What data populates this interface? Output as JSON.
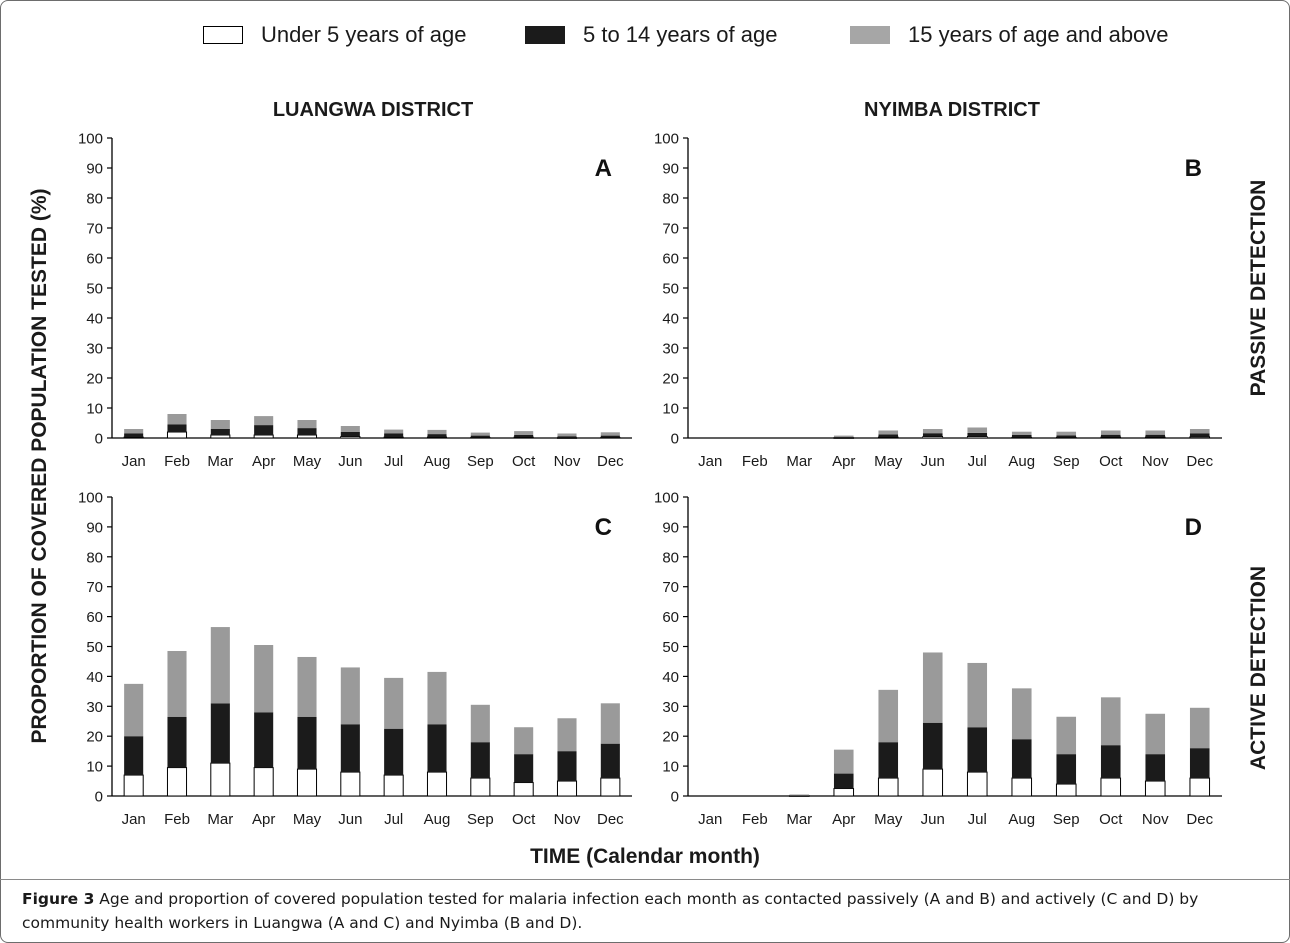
{
  "legend": [
    {
      "label": "Under 5 years of age",
      "color": "#ffffff"
    },
    {
      "label": "5 to 14 years of age",
      "color": "#1b1b1b"
    },
    {
      "label": "15 years of age and above",
      "color": "#9a9a9a"
    }
  ],
  "district_titles": [
    "LUANGWA  DISTRICT",
    "NYIMBA DISTRICT"
  ],
  "row_labels": [
    "PASSIVE DETECTION",
    "ACTIVE  DETECTION"
  ],
  "ylabel": "PROPORTION OF COVERED POPULATION  TESTED (%)",
  "xlabel": "TIME (Calendar month)",
  "caption": {
    "figure_label": "Figure 3",
    "text": " Age and proportion of covered population tested for malaria infection each month as contacted passively (A and B) and actively (C and D) by community health workers in Luangwa (A and C) and Nyimba (B and D)."
  },
  "chart_data": [
    {
      "type": "bar",
      "stacked": true,
      "panel_label": "A",
      "district": "LUANGWA  DISTRICT",
      "detection": "PASSIVE DETECTION",
      "categories": [
        "Jan",
        "Feb",
        "Mar",
        "Apr",
        "May",
        "Jun",
        "Jul",
        "Aug",
        "Sep",
        "Oct",
        "Nov",
        "Dec"
      ],
      "ylim": [
        0,
        100
      ],
      "yticks": [
        0,
        10,
        20,
        30,
        40,
        50,
        60,
        70,
        80,
        90,
        100
      ],
      "series": [
        {
          "name": "Under 5 years of age",
          "values": [
            0.3,
            2,
            1,
            1,
            1,
            0.5,
            0.3,
            0.3,
            0.2,
            0.3,
            0.1,
            0.2
          ]
        },
        {
          "name": "5 to 14 years of age",
          "values": [
            1.2,
            2.5,
            2,
            3.3,
            2.3,
            1.5,
            1.2,
            1,
            0.6,
            0.7,
            0.5,
            0.6
          ]
        },
        {
          "name": "15 years of age and above",
          "values": [
            1.5,
            3.5,
            3,
            3,
            2.7,
            2,
            1.3,
            1.4,
            1,
            1.3,
            0.9,
            1.1
          ]
        }
      ]
    },
    {
      "type": "bar",
      "stacked": true,
      "panel_label": "B",
      "district": "NYIMBA DISTRICT",
      "detection": "PASSIVE DETECTION",
      "categories": [
        "Jan",
        "Feb",
        "Mar",
        "Apr",
        "May",
        "Jun",
        "Jul",
        "Aug",
        "Sep",
        "Oct",
        "Nov",
        "Dec"
      ],
      "ylim": [
        0,
        100
      ],
      "yticks": [
        0,
        10,
        20,
        30,
        40,
        50,
        60,
        70,
        80,
        90,
        100
      ],
      "series": [
        {
          "name": "Under 5 years of age",
          "values": [
            0,
            0,
            0,
            0.1,
            0.3,
            0.5,
            0.5,
            0.2,
            0.2,
            0.3,
            0.3,
            0.4
          ]
        },
        {
          "name": "5 to 14 years of age",
          "values": [
            0,
            0,
            0,
            0.2,
            0.9,
            1.1,
            1.2,
            0.8,
            0.7,
            0.8,
            0.8,
            1.1
          ]
        },
        {
          "name": "15 years of age and above",
          "values": [
            0,
            0,
            0,
            0.5,
            1.3,
            1.4,
            1.8,
            1.1,
            1.2,
            1.4,
            1.4,
            1.5
          ]
        }
      ]
    },
    {
      "type": "bar",
      "stacked": true,
      "panel_label": "C",
      "district": "LUANGWA  DISTRICT",
      "detection": "ACTIVE  DETECTION",
      "categories": [
        "Jan",
        "Feb",
        "Mar",
        "Apr",
        "May",
        "Jun",
        "Jul",
        "Aug",
        "Sep",
        "Oct",
        "Nov",
        "Dec"
      ],
      "ylim": [
        0,
        100
      ],
      "yticks": [
        0,
        10,
        20,
        30,
        40,
        50,
        60,
        70,
        80,
        90,
        100
      ],
      "series": [
        {
          "name": "Under 5 years of age",
          "values": [
            7,
            9.5,
            11,
            9.5,
            9,
            8,
            7,
            8,
            6,
            4.5,
            5,
            6
          ]
        },
        {
          "name": "5 to 14 years of age",
          "values": [
            13,
            17,
            20,
            18.5,
            17.5,
            16,
            15.5,
            16,
            12,
            9.5,
            10,
            11.5
          ]
        },
        {
          "name": "15 years of age and above",
          "values": [
            17.5,
            22,
            25.5,
            22.5,
            20,
            19,
            17,
            17.5,
            12.5,
            9,
            11,
            13.5
          ]
        }
      ]
    },
    {
      "type": "bar",
      "stacked": true,
      "panel_label": "D",
      "district": "NYIMBA DISTRICT",
      "detection": "ACTIVE  DETECTION",
      "categories": [
        "Jan",
        "Feb",
        "Mar",
        "Apr",
        "May",
        "Jun",
        "Jul",
        "Aug",
        "Sep",
        "Oct",
        "Nov",
        "Dec"
      ],
      "ylim": [
        0,
        100
      ],
      "yticks": [
        0,
        10,
        20,
        30,
        40,
        50,
        60,
        70,
        80,
        90,
        100
      ],
      "series": [
        {
          "name": "Under 5 years of age",
          "values": [
            0,
            0,
            0.1,
            2.5,
            6,
            9,
            8,
            6,
            4,
            6,
            5,
            6
          ]
        },
        {
          "name": "5 to 14 years of age",
          "values": [
            0,
            0,
            0.1,
            5,
            12,
            15.5,
            15,
            13,
            10,
            11,
            9,
            10
          ]
        },
        {
          "name": "15 years of age and above",
          "values": [
            0,
            0,
            0.3,
            8,
            17.5,
            23.5,
            21.5,
            17,
            12.5,
            16,
            13.5,
            13.5
          ]
        }
      ]
    }
  ]
}
